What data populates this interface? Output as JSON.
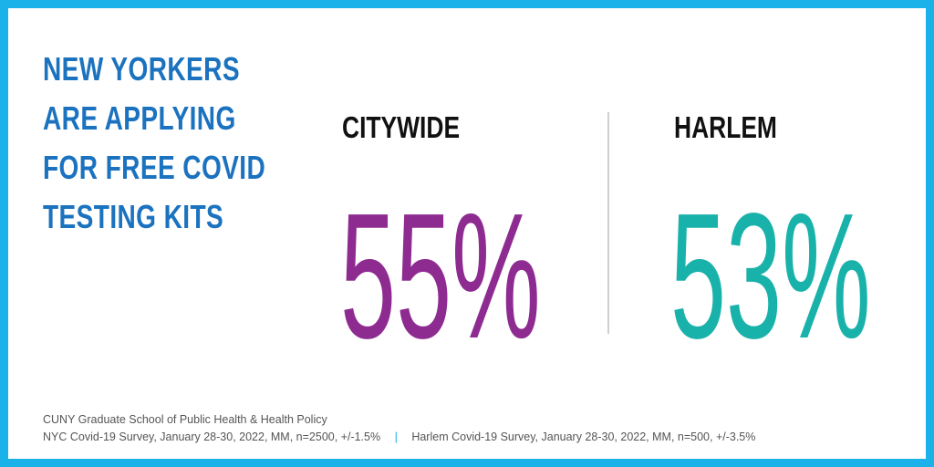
{
  "colors": {
    "border": "#1ab2e8",
    "headline": "#1b72bf",
    "citywide": "#8e2b91",
    "harlem": "#19b2aa"
  },
  "headline": {
    "lines": [
      "NEW YORKERS",
      "ARE APPLYING",
      "FOR FREE COVID",
      "TESTING KITS"
    ]
  },
  "stats": {
    "citywide": {
      "label": "CITYWIDE",
      "value": "55%"
    },
    "harlem": {
      "label": "HARLEM",
      "value": "53%"
    }
  },
  "source": {
    "organization": "CUNY Graduate School of Public Health & Health Policy",
    "nyc_survey": "NYC Covid-19 Survey, January 28-30, 2022, MM, n=2500, +/-1.5%",
    "separator": "|",
    "harlem_survey": "Harlem Covid-19 Survey, January 28-30, 2022, MM, n=500, +/-3.5%"
  }
}
